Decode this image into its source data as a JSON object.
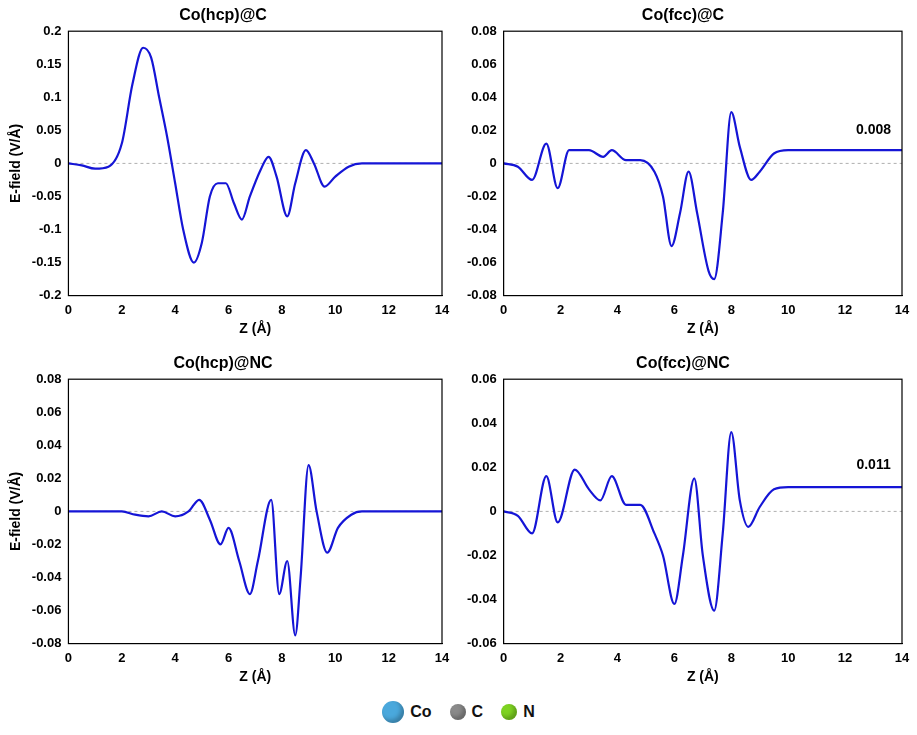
{
  "chart_data": [
    {
      "type": "line",
      "title": "Co(hcp)@C",
      "xlabel": "Z (Å)",
      "ylabel": "E-field (V/Å)",
      "color": "#1515d6",
      "grid": false,
      "reference_line": 0,
      "x": [
        0,
        0.5,
        1,
        1.5,
        2,
        2.4,
        2.8,
        3.1,
        3.4,
        3.7,
        4.0,
        4.3,
        4.7,
        5.0,
        5.3,
        5.6,
        5.9,
        6.2,
        6.5,
        6.8,
        7.2,
        7.5,
        7.8,
        8.2,
        8.5,
        8.9,
        9.2,
        9.6,
        10,
        10.5,
        11,
        12,
        14
      ],
      "values": [
        0,
        -0.003,
        -0.008,
        -0.005,
        0.03,
        0.12,
        0.175,
        0.16,
        0.1,
        0.04,
        -0.03,
        -0.1,
        -0.15,
        -0.12,
        -0.05,
        -0.03,
        -0.03,
        -0.06,
        -0.085,
        -0.05,
        -0.01,
        0.01,
        -0.02,
        -0.08,
        -0.03,
        0.02,
        0.0,
        -0.035,
        -0.02,
        -0.005,
        0,
        0,
        0
      ],
      "xlim": [
        0,
        14
      ],
      "xticks": [
        0,
        2,
        4,
        6,
        8,
        10,
        12,
        14
      ],
      "ylim": [
        -0.2,
        0.2
      ],
      "yticks": [
        -0.2,
        -0.15,
        -0.1,
        -0.05,
        0,
        0.05,
        0.1,
        0.15,
        0.2
      ]
    },
    {
      "type": "line",
      "title": "Co(fcc)@C",
      "xlabel": "Z (Å)",
      "color": "#1515d6",
      "grid": false,
      "reference_line": 0,
      "x": [
        0,
        0.5,
        1,
        1.5,
        1.9,
        2.3,
        3,
        3.5,
        3.8,
        4.3,
        4.8,
        5.3,
        5.6,
        5.9,
        6.2,
        6.5,
        6.8,
        7.2,
        7.4,
        7.7,
        8.0,
        8.3,
        8.7,
        9.0,
        9.5,
        10,
        14
      ],
      "values": [
        0,
        -0.002,
        -0.01,
        0.012,
        -0.015,
        0.008,
        0.008,
        0.004,
        0.008,
        0.002,
        0.002,
        -0.005,
        -0.02,
        -0.05,
        -0.03,
        -0.005,
        -0.03,
        -0.065,
        -0.07,
        -0.03,
        0.031,
        0.01,
        -0.01,
        -0.005,
        0.006,
        0.008,
        0.008
      ],
      "annotations": [
        {
          "text": "0.008",
          "x": 13,
          "y": 0.016
        }
      ],
      "xlim": [
        0,
        14
      ],
      "xticks": [
        0,
        2,
        4,
        6,
        8,
        10,
        12,
        14
      ],
      "ylim": [
        -0.08,
        0.08
      ],
      "yticks": [
        -0.08,
        -0.06,
        -0.04,
        -0.02,
        0,
        0.02,
        0.04,
        0.06,
        0.08
      ]
    },
    {
      "type": "line",
      "title": "Co(hcp)@NC",
      "xlabel": "Z (Å)",
      "ylabel": "E-field (V/Å)",
      "color": "#1515d6",
      "grid": false,
      "reference_line": 0,
      "x": [
        0,
        2,
        2.5,
        3,
        3.5,
        4,
        4.5,
        4.9,
        5.3,
        5.7,
        6.0,
        6.4,
        6.8,
        7.1,
        7.6,
        7.9,
        8.2,
        8.5,
        8.7,
        9.0,
        9.3,
        9.7,
        10.1,
        10.6,
        11,
        14
      ],
      "values": [
        0,
        0,
        -0.002,
        -0.003,
        0,
        -0.003,
        0,
        0.007,
        -0.005,
        -0.02,
        -0.01,
        -0.03,
        -0.05,
        -0.03,
        0.007,
        -0.05,
        -0.03,
        -0.075,
        -0.04,
        0.028,
        0.0,
        -0.025,
        -0.01,
        -0.002,
        0,
        0
      ],
      "xlim": [
        0,
        14
      ],
      "xticks": [
        0,
        2,
        4,
        6,
        8,
        10,
        12,
        14
      ],
      "ylim": [
        -0.08,
        0.08
      ],
      "yticks": [
        -0.08,
        -0.06,
        -0.04,
        -0.02,
        0,
        0.02,
        0.04,
        0.06,
        0.08
      ]
    },
    {
      "type": "line",
      "title": "Co(fcc)@NC",
      "xlabel": "Z (Å)",
      "color": "#1515d6",
      "grid": false,
      "reference_line": 0,
      "x": [
        0,
        0.5,
        1,
        1.5,
        1.9,
        2.5,
        3.0,
        3.4,
        3.8,
        4.3,
        4.8,
        5.3,
        5.6,
        6.0,
        6.3,
        6.7,
        7.0,
        7.4,
        7.7,
        8.0,
        8.3,
        8.6,
        9.0,
        9.5,
        10,
        14
      ],
      "values": [
        0,
        -0.002,
        -0.01,
        0.016,
        -0.005,
        0.019,
        0.01,
        0.005,
        0.016,
        0.003,
        0.003,
        -0.01,
        -0.02,
        -0.042,
        -0.02,
        0.015,
        -0.02,
        -0.045,
        -0.01,
        0.036,
        0.005,
        -0.007,
        0.002,
        0.01,
        0.011,
        0.011
      ],
      "annotations": [
        {
          "text": "0.011",
          "x": 13,
          "y": 0.018
        }
      ],
      "xlim": [
        0,
        14
      ],
      "xticks": [
        0,
        2,
        4,
        6,
        8,
        10,
        12,
        14
      ],
      "ylim": [
        -0.06,
        0.06
      ],
      "yticks": [
        -0.06,
        -0.04,
        -0.02,
        0,
        0.02,
        0.04,
        0.06
      ]
    }
  ],
  "element_legend": [
    {
      "name": "Co",
      "color": "#4aa8dc"
    },
    {
      "name": "C",
      "color": "#8a8a8a"
    },
    {
      "name": "N",
      "color": "#7ed321"
    }
  ]
}
